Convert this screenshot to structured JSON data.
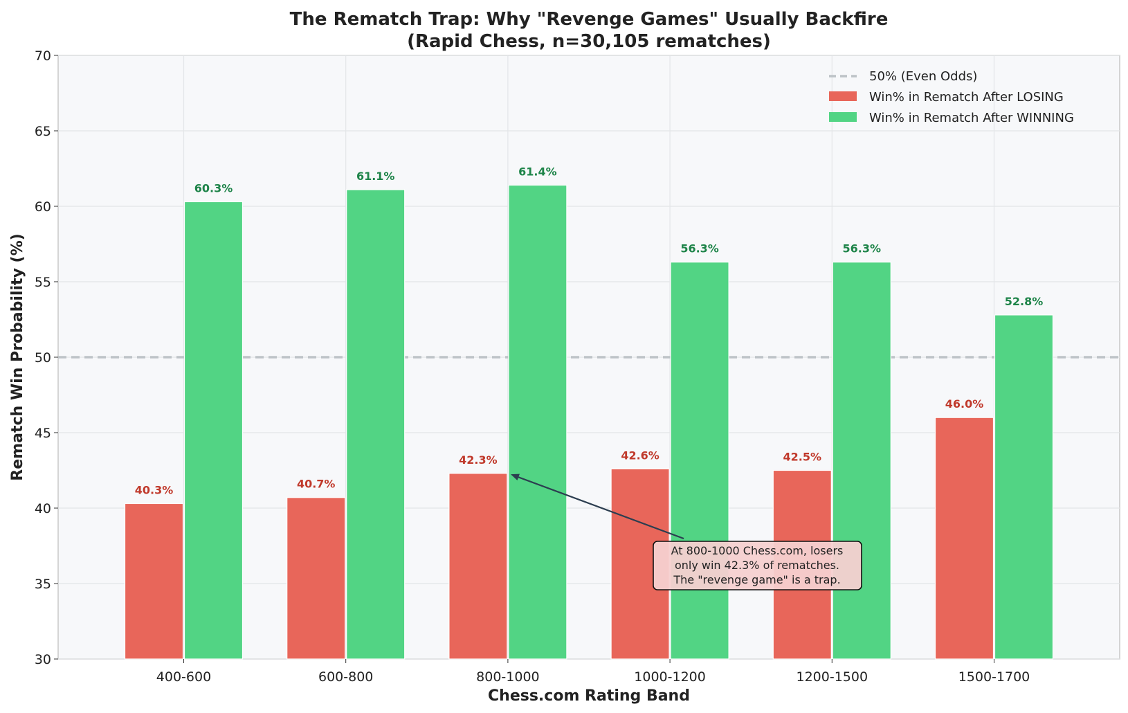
{
  "chart_data": {
    "type": "bar",
    "title_lines": [
      "The Rematch Trap: Why \"Revenge Games\" Usually Backfire",
      "(Rapid Chess, n=30,105 rematches)"
    ],
    "xlabel": "Chess.com Rating Band",
    "ylabel": "Rematch Win Probability (%)",
    "categories": [
      "400-600",
      "600-800",
      "800-1000",
      "1000-1200",
      "1200-1500",
      "1500-1700"
    ],
    "series": [
      {
        "name": "Win% in Rematch After LOSING",
        "values": [
          40.3,
          40.7,
          42.3,
          42.6,
          42.5,
          46.0
        ],
        "labels": [
          "40.3%",
          "40.7%",
          "42.3%",
          "42.6%",
          "42.5%",
          "46.0%"
        ],
        "color": "#e8665a",
        "label_color": "#c0392b"
      },
      {
        "name": "Win% in Rematch After WINNING",
        "values": [
          60.3,
          61.1,
          61.4,
          56.3,
          56.3,
          52.8
        ],
        "labels": [
          "60.3%",
          "61.1%",
          "61.4%",
          "56.3%",
          "56.3%",
          "52.8%"
        ],
        "color": "#52d484",
        "label_color": "#1e8449"
      }
    ],
    "reference_line": {
      "name": "50% (Even Odds)",
      "value": 50,
      "color": "#bdc3c7"
    },
    "ylim": [
      30,
      70
    ],
    "yticks": [
      30,
      35,
      40,
      45,
      50,
      55,
      60,
      65,
      70
    ],
    "ytick_labels": [
      "30",
      "35",
      "40",
      "45",
      "50",
      "55",
      "60",
      "65",
      "70"
    ],
    "grid": true,
    "legend_position": "top-right",
    "annotation": {
      "lines": [
        "At 800-1000 Chess.com, losers",
        "only win 42.3% of rematches.",
        "The \"revenge game\" is a trap."
      ],
      "target_category": "800-1000",
      "target_value": 42.3
    }
  }
}
